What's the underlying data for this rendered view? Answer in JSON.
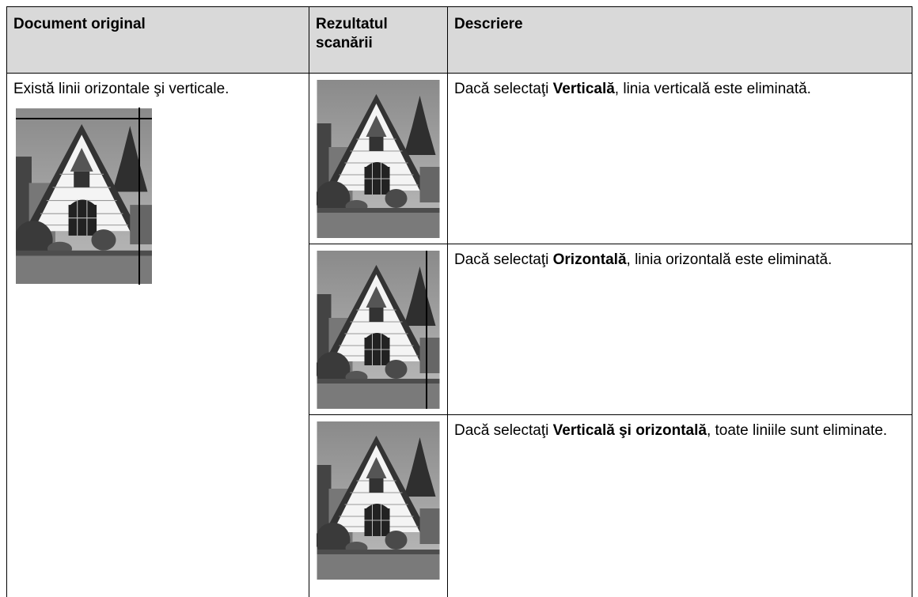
{
  "table": {
    "header": [
      "Document original",
      "Rezultatul scanării",
      "Descriere"
    ],
    "original_text": "Există linii orizontale şi verticale.",
    "rows": [
      {
        "before": "Dacă selectaţi ",
        "bold": "Verticală",
        "after": ", linia verticală este eliminată."
      },
      {
        "before": "Dacă selectaţi ",
        "bold": "Orizontală",
        "after": ", linia orizontală este eliminată."
      },
      {
        "before": "Dacă selectaţi ",
        "bold": "Verticală şi orizontală",
        "after": ", toate liniile sunt eliminate."
      }
    ]
  }
}
